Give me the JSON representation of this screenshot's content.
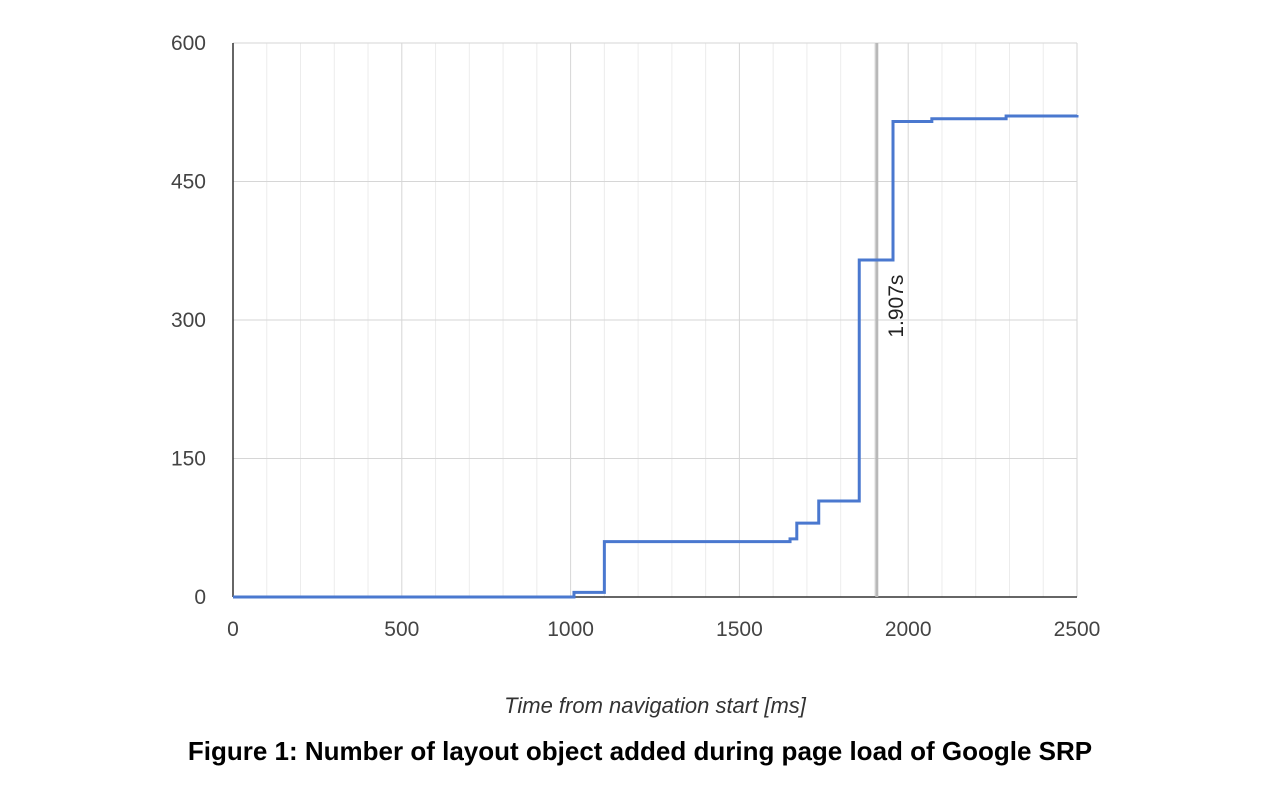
{
  "caption": "Figure 1: Number of layout object added during page load of Google SRP",
  "chart_data": {
    "type": "line",
    "title": "",
    "xlabel": "Time from navigation start [ms]",
    "ylabel": "",
    "xlim": [
      0,
      2500
    ],
    "ylim": [
      0,
      600
    ],
    "x_ticks": [
      0,
      500,
      1000,
      1500,
      2000,
      2500
    ],
    "y_ticks": [
      0,
      150,
      300,
      450,
      600
    ],
    "x_tick_labels": [
      "0",
      "500",
      "1000",
      "1500",
      "2000",
      "2500"
    ],
    "y_tick_labels": [
      "0",
      "150",
      "300",
      "450",
      "600"
    ],
    "grid": true,
    "legend": "none",
    "series": [
      {
        "color": "#4a78cf",
        "step": true,
        "x": [
          0,
          1010,
          1100,
          1650,
          1670,
          1735,
          1855,
          1955,
          2070,
          2290,
          2500
        ],
        "y": [
          0,
          5,
          60,
          63,
          80,
          104,
          365,
          515,
          518,
          521,
          522
        ]
      }
    ],
    "annotations": [
      {
        "x": 1907,
        "label": "1.907s",
        "line_color": "#b8b8b8"
      }
    ]
  }
}
